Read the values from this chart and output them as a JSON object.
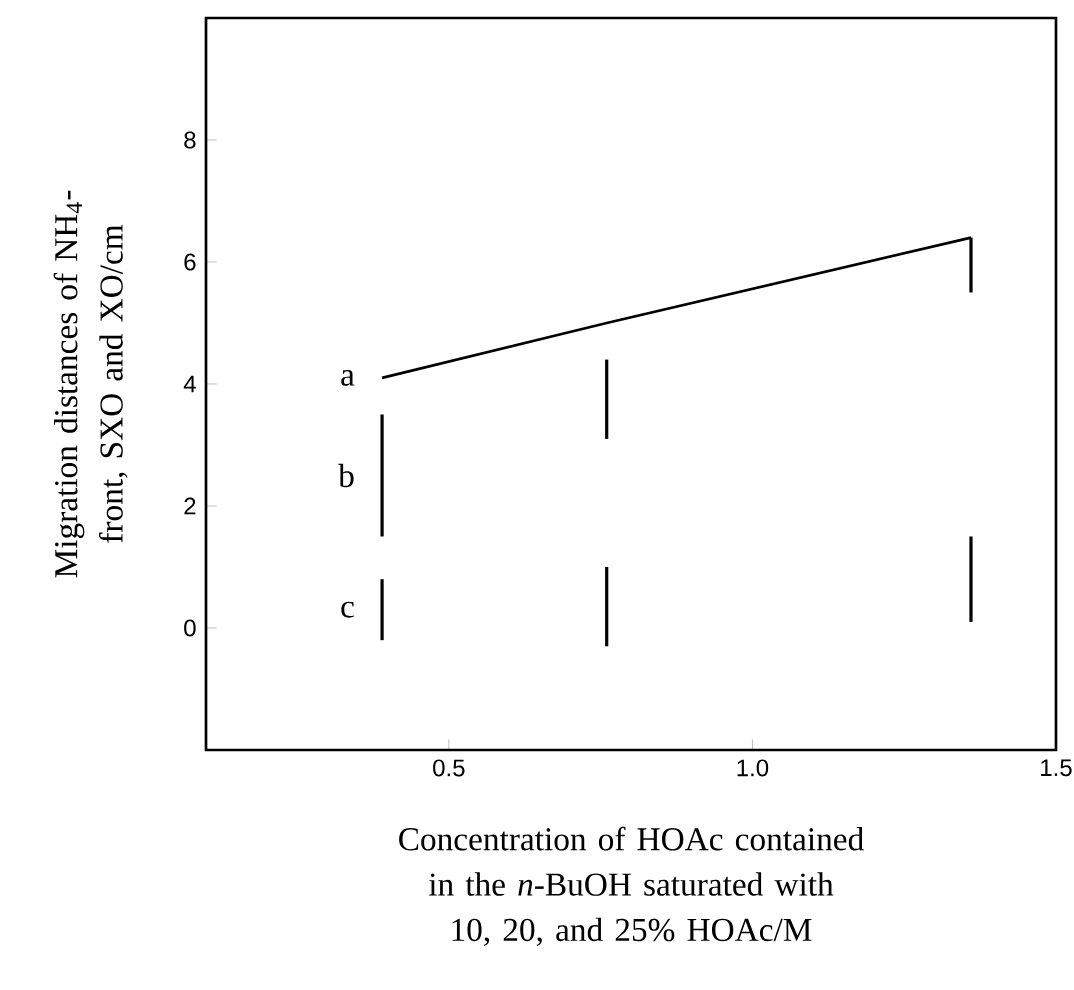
{
  "chart_data": {
    "type": "line",
    "xlabel": "Concentration of HOAc contained in the *n*-BuOH saturated with 10, 20, and 25% HOAc/M",
    "ylabel": "Migration distances of NH$_{4}$-front, SXO and XO/cm",
    "xlim": [
      0.1,
      1.5
    ],
    "xticks": [
      0.5,
      {
        "value": 1.0,
        "label": "1.0"
      },
      1.5
    ],
    "ylim": [
      -2,
      10
    ],
    "yticks": [
      0,
      2,
      4,
      6,
      8
    ],
    "series": [
      {
        "name": "a",
        "color": "#000000",
        "x": [
          0.39,
          0.76,
          1.36
        ],
        "values": [
          4.1,
          5.0,
          6.4
        ]
      },
      {
        "name": "b",
        "type": "bar",
        "color": "#000000",
        "x": [
          0.39,
          0.76,
          1.36
        ],
        "base": [
          1.5,
          3.1,
          5.5
        ],
        "values": [
          2.0,
          1.3,
          0.9
        ]
      },
      {
        "name": "c",
        "type": "bar",
        "color": "#000000",
        "x": [
          0.39,
          0.76,
          1.36
        ],
        "base": [
          -0.2,
          -0.3,
          0.1
        ],
        "values": [
          1.0,
          1.3,
          1.4
        ]
      }
    ]
  }
}
